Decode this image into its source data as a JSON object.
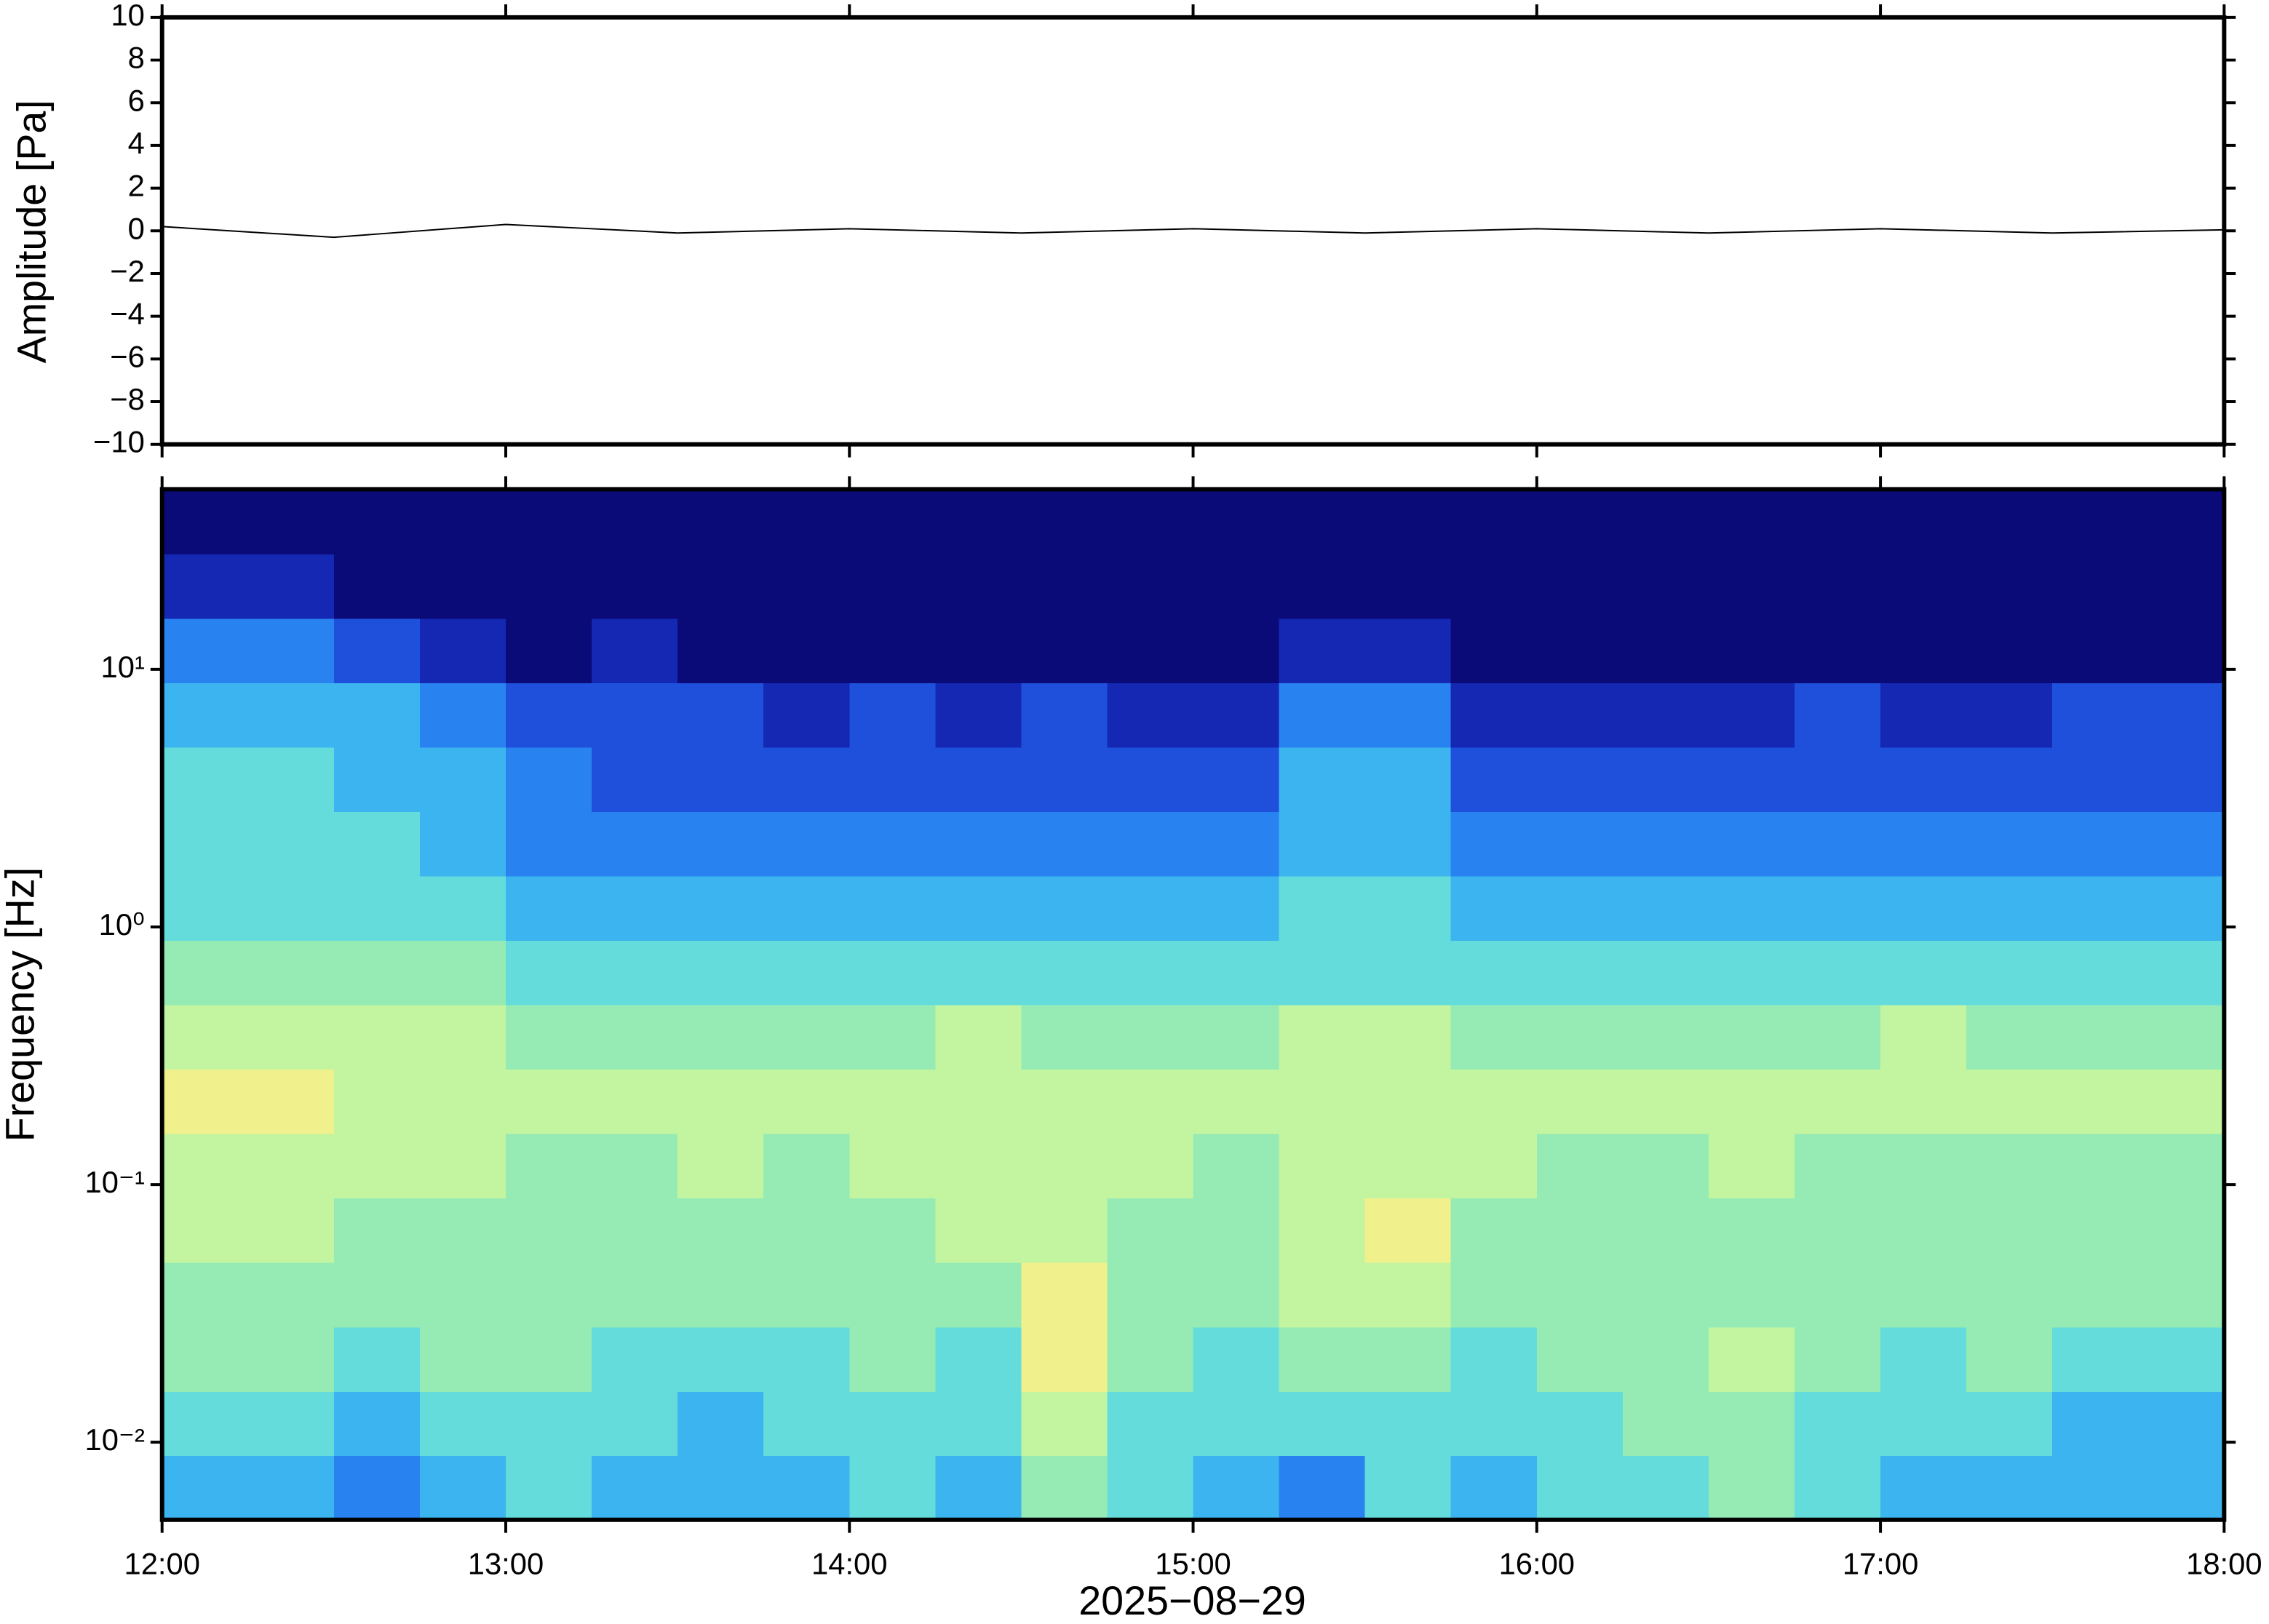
{
  "chart_data": [
    {
      "type": "line",
      "y_label": "Amplitude [Pa]",
      "x": [
        "12:00",
        "12:30",
        "13:00",
        "13:30",
        "14:00",
        "14:30",
        "15:00",
        "15:30",
        "16:00",
        "16:30",
        "17:00",
        "17:30",
        "18:00"
      ],
      "values": [
        0.2,
        -0.3,
        0.3,
        -0.1,
        0.1,
        -0.1,
        0.1,
        -0.1,
        0.1,
        -0.1,
        0.1,
        -0.1,
        0.05
      ],
      "color": "#000000",
      "xlim": [
        "12:00",
        "18:00"
      ],
      "ylim": [
        -10,
        10
      ],
      "yticks": [
        {
          "value": -10,
          "label": "−10"
        },
        {
          "value": -8,
          "label": "−8"
        },
        {
          "value": -6,
          "label": "−6"
        },
        {
          "value": -4,
          "label": "−4"
        },
        {
          "value": -2,
          "label": "−2"
        },
        0,
        2,
        4,
        6,
        8,
        10
      ]
    },
    {
      "type": "heatmap",
      "y_label": "Frequency [Hz]",
      "x_label": "2025−08−29",
      "xlim": [
        "12:00",
        "18:00"
      ],
      "xticks": [
        "12:00",
        "13:00",
        "14:00",
        "15:00",
        "16:00",
        "17:00",
        "18:00"
      ],
      "ylim": [
        0.005,
        50
      ],
      "log_y": true,
      "yticks": [
        {
          "value": 0.01,
          "label": "10⁻²"
        },
        {
          "value": 0.1,
          "label": "10⁻¹"
        },
        {
          "value": 1,
          "label": "10⁰"
        },
        {
          "value": 10,
          "label": "10¹"
        }
      ],
      "x_edges": [
        "12:00",
        "12:15",
        "12:30",
        "12:45",
        "13:00",
        "13:15",
        "13:30",
        "13:45",
        "14:00",
        "14:15",
        "14:30",
        "14:45",
        "15:00",
        "15:15",
        "15:30",
        "15:45",
        "16:00",
        "16:15",
        "16:30",
        "16:45",
        "17:00",
        "17:15",
        "17:30",
        "17:45",
        "18:00"
      ],
      "y_edges": [
        0.005,
        0.0089,
        0.0158,
        0.0281,
        0.05,
        0.089,
        0.158,
        0.281,
        0.5,
        0.89,
        1.58,
        2.81,
        5,
        8.9,
        15.8,
        28.1,
        50
      ],
      "colors": [
        "#0a0a78",
        "#1428b4",
        "#1e50dc",
        "#2882f0",
        "#3cb4f0",
        "#64dcdc",
        "#96ebb4",
        "#c3f5a0",
        "#f0f08c",
        "#f5c878"
      ],
      "values": [
        [
          4,
          4,
          3,
          4,
          5,
          4,
          4,
          4,
          5,
          4,
          6,
          5,
          4,
          3,
          5,
          4,
          5,
          5,
          6,
          5,
          4,
          4,
          4,
          4
        ],
        [
          5,
          5,
          4,
          5,
          5,
          5,
          4,
          5,
          5,
          5,
          7,
          5,
          5,
          5,
          5,
          5,
          5,
          6,
          6,
          5,
          5,
          5,
          4,
          4
        ],
        [
          6,
          6,
          5,
          6,
          6,
          5,
          5,
          5,
          6,
          5,
          8,
          6,
          5,
          6,
          6,
          5,
          6,
          6,
          7,
          6,
          5,
          6,
          5,
          5
        ],
        [
          6,
          6,
          6,
          6,
          6,
          6,
          6,
          6,
          6,
          6,
          8,
          6,
          6,
          7,
          7,
          6,
          6,
          6,
          6,
          6,
          6,
          6,
          6,
          6
        ],
        [
          7,
          7,
          6,
          6,
          6,
          6,
          6,
          6,
          6,
          7,
          7,
          6,
          6,
          7,
          8,
          6,
          6,
          6,
          6,
          6,
          6,
          6,
          6,
          6
        ],
        [
          7,
          7,
          7,
          7,
          6,
          6,
          7,
          6,
          7,
          7,
          7,
          7,
          6,
          7,
          7,
          7,
          6,
          6,
          7,
          6,
          6,
          6,
          6,
          6
        ],
        [
          8,
          8,
          7,
          7,
          7,
          7,
          7,
          7,
          7,
          7,
          7,
          7,
          7,
          7,
          7,
          7,
          7,
          7,
          7,
          7,
          7,
          7,
          7,
          7
        ],
        [
          7,
          7,
          7,
          7,
          6,
          6,
          6,
          6,
          6,
          7,
          6,
          6,
          6,
          7,
          7,
          6,
          6,
          6,
          6,
          6,
          7,
          6,
          6,
          6
        ],
        [
          6,
          6,
          6,
          6,
          5,
          5,
          5,
          5,
          5,
          5,
          5,
          5,
          5,
          5,
          5,
          5,
          5,
          5,
          5,
          5,
          5,
          5,
          5,
          5
        ],
        [
          5,
          5,
          5,
          5,
          4,
          4,
          4,
          4,
          4,
          4,
          4,
          4,
          4,
          5,
          5,
          4,
          4,
          4,
          4,
          4,
          4,
          4,
          4,
          4
        ],
        [
          5,
          5,
          5,
          4,
          3,
          3,
          3,
          3,
          3,
          3,
          3,
          3,
          3,
          4,
          4,
          3,
          3,
          3,
          3,
          3,
          3,
          3,
          3,
          3
        ],
        [
          5,
          5,
          4,
          4,
          3,
          2,
          2,
          2,
          2,
          2,
          2,
          2,
          2,
          4,
          4,
          2,
          2,
          2,
          2,
          2,
          2,
          2,
          2,
          2
        ],
        [
          4,
          4,
          4,
          3,
          2,
          2,
          2,
          1,
          2,
          1,
          2,
          1,
          1,
          3,
          3,
          1,
          1,
          1,
          1,
          2,
          1,
          1,
          2,
          2
        ],
        [
          3,
          3,
          2,
          1,
          0,
          1,
          0,
          0,
          0,
          0,
          0,
          0,
          0,
          1,
          1,
          0,
          0,
          0,
          0,
          0,
          0,
          0,
          0,
          0
        ],
        [
          1,
          1,
          0,
          0,
          0,
          0,
          0,
          0,
          0,
          0,
          0,
          0,
          0,
          0,
          0,
          0,
          0,
          0,
          0,
          0,
          0,
          0,
          0,
          0
        ],
        [
          0,
          0,
          0,
          0,
          0,
          0,
          0,
          0,
          0,
          0,
          0,
          0,
          0,
          0,
          0,
          0,
          0,
          0,
          0,
          0,
          0,
          0,
          0,
          0
        ]
      ]
    }
  ]
}
